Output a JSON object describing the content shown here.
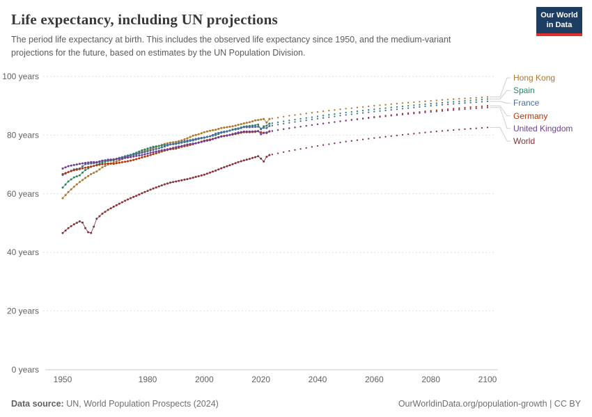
{
  "header": {
    "title": "Life expectancy, including UN projections",
    "subtitle": "The period life expectancy at birth. This includes the observed life expectancy since 1950, and the medium-variant projections for the future, based on estimates by the UN Population Division.",
    "logo": {
      "line1": "Our World",
      "line2": "in Data",
      "bg": "#1d3d63",
      "accent": "#e0312b"
    }
  },
  "footer": {
    "source_label": "Data source:",
    "source_text": " UN, World Population Prospects (2024)",
    "right_text": "OurWorldinData.org/population-growth | CC BY"
  },
  "chart_data": {
    "type": "line",
    "title": "Life expectancy, including UN projections",
    "xlabel": "",
    "ylabel": "",
    "ylim": [
      0,
      100
    ],
    "xlim": [
      1950,
      2100
    ],
    "grid": "dashed-horizontal",
    "legend_position": "right",
    "projection_start": 2023,
    "yticks": [
      0,
      20,
      40,
      60,
      80,
      100
    ],
    "ytick_labels": [
      "0 years",
      "20 years",
      "40 years",
      "60 years",
      "80 years",
      "100 years"
    ],
    "xticks": [
      1950,
      1980,
      2000,
      2020,
      2040,
      2060,
      2080,
      2100
    ],
    "colors": {
      "grid": "#dedede",
      "axis": "#c8c8c8",
      "tick_text": "#616161",
      "connector": "#cfcfcf"
    },
    "series": [
      {
        "name": "Hong Kong",
        "color": "#B0762B",
        "observed": [
          [
            1950,
            58.5
          ],
          [
            1952,
            60.6
          ],
          [
            1954,
            62.4
          ],
          [
            1956,
            64.0
          ],
          [
            1958,
            65.4
          ],
          [
            1960,
            66.7
          ],
          [
            1962,
            67.6
          ],
          [
            1964,
            69.0
          ],
          [
            1966,
            70.0
          ],
          [
            1968,
            70.7
          ],
          [
            1970,
            71.4
          ],
          [
            1972,
            72.2
          ],
          [
            1974,
            73.0
          ],
          [
            1976,
            73.7
          ],
          [
            1978,
            74.3
          ],
          [
            1980,
            74.8
          ],
          [
            1982,
            75.6
          ],
          [
            1984,
            76.3
          ],
          [
            1986,
            77.0
          ],
          [
            1988,
            77.4
          ],
          [
            1990,
            77.7
          ],
          [
            1992,
            78.2
          ],
          [
            1994,
            78.9
          ],
          [
            1996,
            79.8
          ],
          [
            1998,
            80.3
          ],
          [
            2000,
            81.0
          ],
          [
            2002,
            81.5
          ],
          [
            2004,
            81.8
          ],
          [
            2006,
            82.4
          ],
          [
            2008,
            82.7
          ],
          [
            2010,
            83.0
          ],
          [
            2012,
            83.5
          ],
          [
            2014,
            84.0
          ],
          [
            2016,
            84.4
          ],
          [
            2018,
            85.0
          ],
          [
            2020,
            85.3
          ],
          [
            2021,
            85.5
          ],
          [
            2022,
            84.3
          ],
          [
            2023,
            85.5
          ]
        ],
        "projected": [
          [
            2023,
            85.5
          ],
          [
            2030,
            86.6
          ],
          [
            2040,
            87.9
          ],
          [
            2050,
            89.0
          ],
          [
            2060,
            90.0
          ],
          [
            2070,
            90.9
          ],
          [
            2080,
            91.7
          ],
          [
            2090,
            92.4
          ],
          [
            2100,
            93.0
          ]
        ]
      },
      {
        "name": "Spain",
        "color": "#2C8465",
        "observed": [
          [
            1950,
            62.1
          ],
          [
            1952,
            64.2
          ],
          [
            1954,
            65.6
          ],
          [
            1956,
            66.3
          ],
          [
            1958,
            68.1
          ],
          [
            1960,
            69.2
          ],
          [
            1962,
            69.8
          ],
          [
            1964,
            70.7
          ],
          [
            1966,
            71.2
          ],
          [
            1968,
            71.4
          ],
          [
            1970,
            72.2
          ],
          [
            1972,
            72.8
          ],
          [
            1974,
            73.3
          ],
          [
            1976,
            74.0
          ],
          [
            1978,
            74.8
          ],
          [
            1980,
            75.4
          ],
          [
            1982,
            76.0
          ],
          [
            1984,
            76.3
          ],
          [
            1986,
            76.6
          ],
          [
            1988,
            76.8
          ],
          [
            1990,
            77.0
          ],
          [
            1992,
            77.4
          ],
          [
            1994,
            77.8
          ],
          [
            1996,
            78.2
          ],
          [
            1998,
            78.7
          ],
          [
            2000,
            79.1
          ],
          [
            2002,
            79.6
          ],
          [
            2004,
            80.0
          ],
          [
            2006,
            80.8
          ],
          [
            2008,
            81.2
          ],
          [
            2010,
            81.9
          ],
          [
            2012,
            82.3
          ],
          [
            2014,
            82.9
          ],
          [
            2016,
            83.1
          ],
          [
            2018,
            83.4
          ],
          [
            2019,
            83.6
          ],
          [
            2020,
            82.0
          ],
          [
            2021,
            83.0
          ],
          [
            2022,
            83.2
          ],
          [
            2023,
            83.9
          ]
        ],
        "projected": [
          [
            2023,
            83.9
          ],
          [
            2030,
            85.0
          ],
          [
            2040,
            86.4
          ],
          [
            2050,
            87.7
          ],
          [
            2060,
            88.8
          ],
          [
            2070,
            89.8
          ],
          [
            2080,
            90.7
          ],
          [
            2090,
            91.5
          ],
          [
            2100,
            92.3
          ]
        ]
      },
      {
        "name": "France",
        "color": "#4C6A9C",
        "observed": [
          [
            1950,
            66.4
          ],
          [
            1952,
            67.4
          ],
          [
            1954,
            68.3
          ],
          [
            1956,
            68.6
          ],
          [
            1958,
            70.1
          ],
          [
            1960,
            70.3
          ],
          [
            1962,
            70.6
          ],
          [
            1964,
            71.2
          ],
          [
            1966,
            71.6
          ],
          [
            1968,
            71.7
          ],
          [
            1970,
            72.2
          ],
          [
            1972,
            72.6
          ],
          [
            1974,
            73.1
          ],
          [
            1976,
            73.5
          ],
          [
            1978,
            74.0
          ],
          [
            1980,
            74.5
          ],
          [
            1982,
            75.0
          ],
          [
            1984,
            75.5
          ],
          [
            1986,
            76.1
          ],
          [
            1988,
            76.8
          ],
          [
            1990,
            77.2
          ],
          [
            1992,
            77.7
          ],
          [
            1994,
            78.1
          ],
          [
            1996,
            78.5
          ],
          [
            1998,
            78.9
          ],
          [
            2000,
            79.2
          ],
          [
            2002,
            79.6
          ],
          [
            2004,
            80.5
          ],
          [
            2006,
            81.0
          ],
          [
            2008,
            81.3
          ],
          [
            2010,
            81.8
          ],
          [
            2012,
            82.1
          ],
          [
            2014,
            82.7
          ],
          [
            2016,
            82.7
          ],
          [
            2018,
            82.8
          ],
          [
            2019,
            82.9
          ],
          [
            2020,
            82.2
          ],
          [
            2021,
            82.5
          ],
          [
            2022,
            82.4
          ],
          [
            2023,
            83.1
          ]
        ],
        "projected": [
          [
            2023,
            83.1
          ],
          [
            2030,
            84.2
          ],
          [
            2040,
            85.6
          ],
          [
            2050,
            86.9
          ],
          [
            2060,
            88.0
          ],
          [
            2070,
            89.0
          ],
          [
            2080,
            90.0
          ],
          [
            2090,
            90.8
          ],
          [
            2100,
            91.5
          ]
        ]
      },
      {
        "name": "Germany",
        "color": "#B13507",
        "observed": [
          [
            1950,
            66.7
          ],
          [
            1952,
            67.4
          ],
          [
            1954,
            68.0
          ],
          [
            1956,
            68.4
          ],
          [
            1958,
            68.9
          ],
          [
            1960,
            69.3
          ],
          [
            1962,
            69.7
          ],
          [
            1964,
            70.1
          ],
          [
            1966,
            70.3
          ],
          [
            1968,
            70.2
          ],
          [
            1970,
            70.6
          ],
          [
            1972,
            70.9
          ],
          [
            1974,
            71.3
          ],
          [
            1976,
            71.8
          ],
          [
            1978,
            72.4
          ],
          [
            1980,
            72.9
          ],
          [
            1982,
            73.5
          ],
          [
            1984,
            74.1
          ],
          [
            1986,
            74.7
          ],
          [
            1988,
            75.2
          ],
          [
            1990,
            75.4
          ],
          [
            1992,
            76.0
          ],
          [
            1994,
            76.4
          ],
          [
            1996,
            76.9
          ],
          [
            1998,
            77.5
          ],
          [
            2000,
            78.1
          ],
          [
            2002,
            78.5
          ],
          [
            2004,
            79.0
          ],
          [
            2006,
            79.6
          ],
          [
            2008,
            79.9
          ],
          [
            2010,
            80.2
          ],
          [
            2012,
            80.6
          ],
          [
            2014,
            81.0
          ],
          [
            2016,
            81.0
          ],
          [
            2018,
            81.1
          ],
          [
            2019,
            81.3
          ],
          [
            2020,
            81.0
          ],
          [
            2021,
            80.8
          ],
          [
            2022,
            80.7
          ],
          [
            2023,
            81.2
          ]
        ],
        "projected": [
          [
            2023,
            81.2
          ],
          [
            2030,
            82.3
          ],
          [
            2040,
            83.7
          ],
          [
            2050,
            85.0
          ],
          [
            2060,
            86.2
          ],
          [
            2070,
            87.3
          ],
          [
            2080,
            88.3
          ],
          [
            2090,
            89.2
          ],
          [
            2100,
            90.0
          ]
        ]
      },
      {
        "name": "United Kingdom",
        "color": "#6D3E91",
        "observed": [
          [
            1950,
            68.6
          ],
          [
            1952,
            69.4
          ],
          [
            1954,
            69.8
          ],
          [
            1956,
            70.2
          ],
          [
            1958,
            70.5
          ],
          [
            1960,
            70.8
          ],
          [
            1962,
            70.8
          ],
          [
            1964,
            71.3
          ],
          [
            1966,
            71.5
          ],
          [
            1968,
            71.7
          ],
          [
            1970,
            71.9
          ],
          [
            1972,
            72.2
          ],
          [
            1974,
            72.5
          ],
          [
            1976,
            72.9
          ],
          [
            1978,
            73.2
          ],
          [
            1980,
            73.7
          ],
          [
            1982,
            74.2
          ],
          [
            1984,
            74.6
          ],
          [
            1986,
            75.0
          ],
          [
            1988,
            75.4
          ],
          [
            1990,
            75.9
          ],
          [
            1992,
            76.3
          ],
          [
            1994,
            76.8
          ],
          [
            1996,
            77.1
          ],
          [
            1998,
            77.4
          ],
          [
            2000,
            77.9
          ],
          [
            2002,
            78.3
          ],
          [
            2004,
            78.9
          ],
          [
            2006,
            79.5
          ],
          [
            2008,
            79.8
          ],
          [
            2010,
            80.4
          ],
          [
            2012,
            80.9
          ],
          [
            2014,
            81.2
          ],
          [
            2016,
            81.2
          ],
          [
            2018,
            81.3
          ],
          [
            2019,
            81.4
          ],
          [
            2020,
            80.3
          ],
          [
            2021,
            80.7
          ],
          [
            2022,
            80.9
          ],
          [
            2023,
            81.3
          ]
        ],
        "projected": [
          [
            2023,
            81.3
          ],
          [
            2030,
            82.4
          ],
          [
            2040,
            83.7
          ],
          [
            2050,
            84.9
          ],
          [
            2060,
            86.0
          ],
          [
            2070,
            87.0
          ],
          [
            2080,
            87.9
          ],
          [
            2090,
            88.7
          ],
          [
            2100,
            89.4
          ]
        ]
      },
      {
        "name": "World",
        "color": "#883039",
        "observed": [
          [
            1950,
            46.6
          ],
          [
            1952,
            48.3
          ],
          [
            1954,
            49.6
          ],
          [
            1956,
            50.6
          ],
          [
            1957,
            50.2
          ],
          [
            1958,
            48.3
          ],
          [
            1959,
            46.9
          ],
          [
            1960,
            46.6
          ],
          [
            1961,
            48.8
          ],
          [
            1962,
            51.5
          ],
          [
            1964,
            53.2
          ],
          [
            1966,
            54.5
          ],
          [
            1968,
            55.6
          ],
          [
            1970,
            56.6
          ],
          [
            1972,
            57.6
          ],
          [
            1974,
            58.5
          ],
          [
            1976,
            59.3
          ],
          [
            1978,
            60.2
          ],
          [
            1980,
            61.0
          ],
          [
            1982,
            61.8
          ],
          [
            1984,
            62.5
          ],
          [
            1986,
            63.2
          ],
          [
            1988,
            63.8
          ],
          [
            1990,
            64.2
          ],
          [
            1992,
            64.6
          ],
          [
            1994,
            65.0
          ],
          [
            1996,
            65.5
          ],
          [
            1998,
            66.0
          ],
          [
            2000,
            66.5
          ],
          [
            2002,
            67.2
          ],
          [
            2004,
            67.9
          ],
          [
            2006,
            68.7
          ],
          [
            2008,
            69.4
          ],
          [
            2010,
            70.1
          ],
          [
            2012,
            70.8
          ],
          [
            2014,
            71.4
          ],
          [
            2016,
            71.9
          ],
          [
            2018,
            72.5
          ],
          [
            2019,
            72.8
          ],
          [
            2020,
            72.0
          ],
          [
            2021,
            71.0
          ],
          [
            2022,
            72.6
          ],
          [
            2023,
            73.2
          ]
        ],
        "projected": [
          [
            2023,
            73.2
          ],
          [
            2030,
            74.6
          ],
          [
            2040,
            76.3
          ],
          [
            2050,
            77.8
          ],
          [
            2060,
            79.0
          ],
          [
            2070,
            80.1
          ],
          [
            2080,
            81.1
          ],
          [
            2090,
            81.9
          ],
          [
            2100,
            82.6
          ]
        ]
      }
    ]
  }
}
